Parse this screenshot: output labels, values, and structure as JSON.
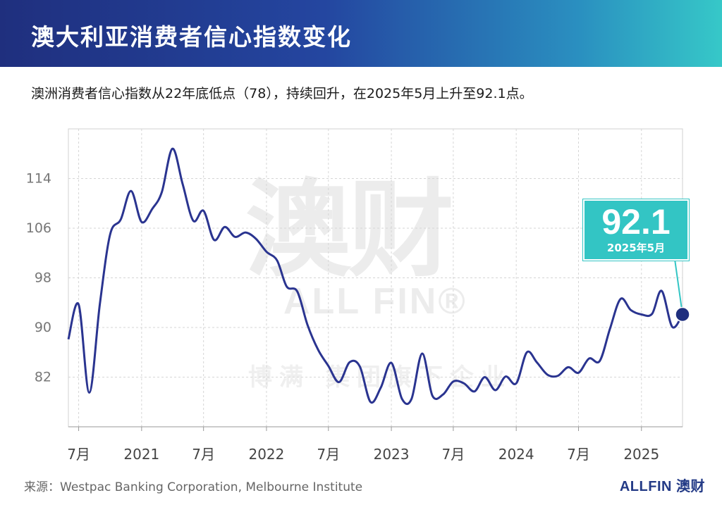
{
  "header": {
    "title": "澳大利亚消费者信心指数变化"
  },
  "subtitle": "澳洲消费者信心指数从22年底低点（78），持续回升，在2025年5月上升至92.1点。",
  "watermark": {
    "cn": "澳财",
    "en": "ALL FIN",
    "sub": "博满 集团旗下企业"
  },
  "callout": {
    "value": "92.1",
    "date": "2025年5月"
  },
  "footer": {
    "source": "来源：Westpac Banking Corporation, Melbourne Institute",
    "brand": "ALLFIN 澳财"
  },
  "colors": {
    "line": "#2a3490",
    "accent": "#33c5c4",
    "header_start": "#1f2f7e",
    "header_end": "#36c8c8"
  },
  "chart_data": {
    "type": "line",
    "title": "",
    "xlabel": "",
    "ylabel": "",
    "ylim": [
      74,
      122
    ],
    "y_ticks": [
      82,
      90,
      98,
      106,
      114
    ],
    "grid": true,
    "x_tick_labels": [
      "7月",
      "2021",
      "7月",
      "2022",
      "7月",
      "2023",
      "7月",
      "2024",
      "7月",
      "2025"
    ],
    "x_tick_positions": [
      "2020-07",
      "2021-01",
      "2021-07",
      "2022-01",
      "2022-07",
      "2023-01",
      "2023-07",
      "2024-01",
      "2024-07",
      "2025-01"
    ],
    "series": [
      {
        "x": [
          "2020-06",
          "2020-07",
          "2020-08",
          "2020-09",
          "2020-10",
          "2020-11",
          "2020-12",
          "2021-01",
          "2021-02",
          "2021-03",
          "2021-04",
          "2021-05",
          "2021-06",
          "2021-07",
          "2021-08",
          "2021-09",
          "2021-10",
          "2021-11",
          "2021-12",
          "2022-01",
          "2022-02",
          "2022-03",
          "2022-04",
          "2022-05",
          "2022-06",
          "2022-07",
          "2022-08",
          "2022-09",
          "2022-10",
          "2022-11",
          "2022-12",
          "2023-01",
          "2023-02",
          "2023-03",
          "2023-04",
          "2023-05",
          "2023-06",
          "2023-07",
          "2023-08",
          "2023-09",
          "2023-10",
          "2023-11",
          "2023-12",
          "2024-01",
          "2024-02",
          "2024-03",
          "2024-04",
          "2024-05",
          "2024-06",
          "2024-07",
          "2024-08",
          "2024-09",
          "2024-10",
          "2024-11",
          "2024-12",
          "2025-01",
          "2025-02",
          "2025-03",
          "2025-04",
          "2025-05"
        ],
        "values": [
          88.1,
          93.7,
          79.5,
          93.8,
          105.0,
          107.4,
          112.0,
          107.0,
          109.1,
          111.8,
          118.8,
          113.1,
          107.2,
          108.8,
          104.1,
          106.2,
          104.6,
          105.3,
          104.3,
          102.2,
          100.8,
          96.6,
          95.8,
          90.4,
          86.4,
          83.8,
          81.2,
          84.4,
          83.7,
          78.0,
          80.3,
          84.3,
          78.5,
          78.5,
          85.8,
          79.0,
          79.2,
          81.3,
          81.0,
          79.7,
          82.0,
          79.9,
          82.1,
          81.0,
          86.0,
          84.4,
          82.4,
          82.2,
          83.6,
          82.7,
          85.0,
          84.6,
          89.8,
          94.6,
          92.8,
          92.1,
          92.2,
          95.9,
          90.1,
          92.1
        ]
      }
    ]
  }
}
